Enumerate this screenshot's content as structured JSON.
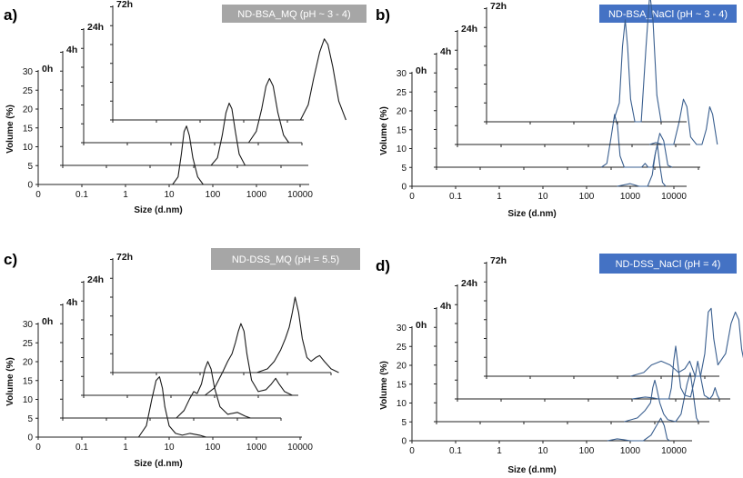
{
  "chart_data": [
    {
      "panel": "a)",
      "type": "line",
      "title": "ND-BSA_MQ (pH ~ 3 - 4)",
      "title_bg": "#a6a6a6",
      "line_color": "#1a1a1a",
      "xlabel": "Size (d.nm)",
      "ylabel": "Volume (%)",
      "x_ticks": [
        "0",
        "0.1",
        "1",
        "10",
        "100",
        "1000",
        "10000"
      ],
      "y_ticks": [
        "0",
        "5",
        "10",
        "15",
        "20",
        "25",
        "30"
      ],
      "ylim": [
        0,
        30
      ],
      "series": [
        {
          "name": "0h",
          "points": [
            [
              12,
              0
            ],
            [
              16,
              2
            ],
            [
              19,
              8
            ],
            [
              22,
              14
            ],
            [
              25,
              15.5
            ],
            [
              29,
              13
            ],
            [
              35,
              7
            ],
            [
              45,
              2
            ],
            [
              60,
              0
            ]
          ]
        },
        {
          "name": "4h",
          "points": [
            [
              25,
              0
            ],
            [
              35,
              2
            ],
            [
              45,
              8
            ],
            [
              55,
              14
            ],
            [
              65,
              16.5
            ],
            [
              75,
              15
            ],
            [
              90,
              9
            ],
            [
              110,
              3
            ],
            [
              150,
              0
            ]
          ]
        },
        {
          "name": "24h",
          "points": [
            [
              60,
              0
            ],
            [
              90,
              3
            ],
            [
              120,
              9
            ],
            [
              150,
              15
            ],
            [
              180,
              17
            ],
            [
              220,
              15
            ],
            [
              280,
              8
            ],
            [
              380,
              2
            ],
            [
              500,
              0
            ]
          ]
        },
        {
          "name": "72h",
          "points": [
            [
              200,
              0
            ],
            [
              300,
              4
            ],
            [
              400,
              11
            ],
            [
              550,
              18
            ],
            [
              700,
              21.5
            ],
            [
              850,
              20
            ],
            [
              1100,
              14
            ],
            [
              1500,
              5
            ],
            [
              2200,
              0
            ]
          ]
        }
      ]
    },
    {
      "panel": "b)",
      "type": "line",
      "title": "ND-BSA_NaCl (pH ~ 3 - 4)",
      "title_bg": "#4472c4",
      "line_color": "#3a5f8f",
      "xlabel": "Size (d.nm)",
      "ylabel": "Volume (%)",
      "x_ticks": [
        "0",
        "0.1",
        "1",
        "10",
        "100",
        "1000",
        "10000"
      ],
      "y_ticks": [
        "0",
        "5",
        "10",
        "15",
        "20",
        "25",
        "30"
      ],
      "ylim": [
        0,
        30
      ],
      "series": [
        {
          "name": "0h",
          "points": [
            [
              500,
              0
            ],
            [
              1000,
              0.7
            ],
            [
              1600,
              0
            ],
            [
              2500,
              0
            ],
            [
              3200,
              3
            ],
            [
              3800,
              9
            ],
            [
              4200,
              11
            ],
            [
              4700,
              6
            ],
            [
              5500,
              1
            ],
            [
              6500,
              0
            ]
          ]
        },
        {
          "name": "4h",
          "points": [
            [
              60,
              0
            ],
            [
              80,
              1
            ],
            [
              100,
              8
            ],
            [
              120,
              14
            ],
            [
              140,
              11
            ],
            [
              160,
              3
            ],
            [
              200,
              0
            ],
            [
              500,
              0
            ],
            [
              600,
              1
            ],
            [
              700,
              0
            ],
            [
              900,
              0
            ],
            [
              1000,
              3
            ],
            [
              1300,
              9
            ],
            [
              1600,
              7
            ],
            [
              2000,
              0.5
            ],
            [
              2500,
              0
            ]
          ]
        },
        {
          "name": "24h",
          "points": [
            [
              250,
              0
            ],
            [
              350,
              0.5
            ],
            [
              500,
              0
            ],
            [
              900,
              0
            ],
            [
              1200,
              6
            ],
            [
              1500,
              12
            ],
            [
              1800,
              10
            ],
            [
              2200,
              2
            ],
            [
              3000,
              0
            ],
            [
              4000,
              0
            ],
            [
              5000,
              4
            ],
            [
              6000,
              10
            ],
            [
              7000,
              8
            ],
            [
              9000,
              0
            ]
          ]
        },
        {
          "name": "72h",
          "points": [
            [
              8,
              0
            ],
            [
              11,
              5
            ],
            [
              13,
              20
            ],
            [
              15,
              27
            ],
            [
              17,
              20
            ],
            [
              20,
              6
            ],
            [
              25,
              0
            ],
            [
              35,
              0
            ],
            [
              45,
              20
            ],
            [
              55,
              34
            ],
            [
              65,
              27
            ],
            [
              80,
              7
            ],
            [
              100,
              0
            ]
          ]
        }
      ]
    },
    {
      "panel": "c)",
      "type": "line",
      "title": "ND-DSS_MQ (pH = 5.5)",
      "title_bg": "#a6a6a6",
      "line_color": "#1a1a1a",
      "xlabel": "Size (d.nm)",
      "ylabel": "Volume (%)",
      "x_ticks": [
        "0",
        "0.1",
        "1",
        "10",
        "100",
        "1000",
        "10000"
      ],
      "y_ticks": [
        "0",
        "5",
        "10",
        "15",
        "20",
        "25",
        "30"
      ],
      "ylim": [
        0,
        30
      ],
      "series": [
        {
          "name": "0h",
          "points": [
            [
              2,
              0
            ],
            [
              3,
              3
            ],
            [
              4,
              10
            ],
            [
              5,
              15
            ],
            [
              6,
              16
            ],
            [
              7,
              13
            ],
            [
              8,
              8
            ],
            [
              10,
              3
            ],
            [
              14,
              1
            ],
            [
              20,
              0.5
            ],
            [
              30,
              1
            ],
            [
              50,
              0.5
            ],
            [
              70,
              0
            ]
          ]
        },
        {
          "name": "4h",
          "points": [
            [
              4,
              0
            ],
            [
              6,
              2
            ],
            [
              8,
              5
            ],
            [
              10,
              7
            ],
            [
              12,
              6.5
            ],
            [
              15,
              9
            ],
            [
              18,
              13
            ],
            [
              21,
              15
            ],
            [
              25,
              13
            ],
            [
              30,
              8
            ],
            [
              40,
              3
            ],
            [
              60,
              1
            ],
            [
              100,
              1.5
            ],
            [
              150,
              0.5
            ],
            [
              200,
              0
            ]
          ]
        },
        {
          "name": "24h",
          "points": [
            [
              6,
              0
            ],
            [
              10,
              2
            ],
            [
              15,
              6
            ],
            [
              20,
              9
            ],
            [
              25,
              11
            ],
            [
              30,
              14
            ],
            [
              35,
              17
            ],
            [
              40,
              19
            ],
            [
              47,
              17
            ],
            [
              55,
              11
            ],
            [
              70,
              4
            ],
            [
              100,
              1
            ],
            [
              150,
              1.5
            ],
            [
              200,
              3
            ],
            [
              250,
              4.5
            ],
            [
              300,
              3
            ],
            [
              400,
              1
            ],
            [
              600,
              0
            ]
          ]
        },
        {
          "name": "72h",
          "points": [
            [
              20,
              0
            ],
            [
              35,
              1
            ],
            [
              50,
              3
            ],
            [
              70,
              6
            ],
            [
              90,
              9
            ],
            [
              110,
              12
            ],
            [
              130,
              16
            ],
            [
              150,
              20
            ],
            [
              180,
              16
            ],
            [
              220,
              9
            ],
            [
              280,
              4
            ],
            [
              350,
              3
            ],
            [
              450,
              4
            ],
            [
              550,
              4.5
            ],
            [
              700,
              3
            ],
            [
              1000,
              1
            ],
            [
              1500,
              0
            ]
          ]
        }
      ]
    },
    {
      "panel": "d)",
      "type": "line",
      "title": "ND-DSS_NaCl (pH = 4)",
      "title_bg": "#4472c4",
      "line_color": "#3a5f8f",
      "xlabel": "Size (d.nm)",
      "ylabel": "Volume (%)",
      "x_ticks": [
        "0",
        "0.1",
        "1",
        "10",
        "100",
        "1000",
        "10000"
      ],
      "y_ticks": [
        "0",
        "5",
        "10",
        "15",
        "20",
        "25",
        "30"
      ],
      "ylim": [
        0,
        30
      ],
      "series": [
        {
          "name": "0h",
          "points": [
            [
              300,
              0
            ],
            [
              500,
              0.5
            ],
            [
              700,
              0.3
            ],
            [
              1000,
              0
            ],
            [
              2000,
              0
            ],
            [
              3000,
              1.5
            ],
            [
              4000,
              4
            ],
            [
              5000,
              6
            ],
            [
              6000,
              4
            ],
            [
              7000,
              0.5
            ],
            [
              8000,
              0
            ]
          ]
        },
        {
          "name": "4h",
          "points": [
            [
              200,
              0
            ],
            [
              400,
              1
            ],
            [
              600,
              3
            ],
            [
              800,
              5
            ],
            [
              900,
              9
            ],
            [
              1000,
              11
            ],
            [
              1100,
              9
            ],
            [
              1300,
              5
            ],
            [
              1600,
              2
            ],
            [
              2000,
              0.5
            ],
            [
              3000,
              0
            ],
            [
              4000,
              2
            ],
            [
              5500,
              10
            ],
            [
              6500,
              13
            ],
            [
              7500,
              8
            ],
            [
              9000,
              1
            ],
            [
              10000,
              0
            ]
          ]
        },
        {
          "name": "24h",
          "points": [
            [
              100,
              0
            ],
            [
              200,
              0.5
            ],
            [
              300,
              0.3
            ],
            [
              400,
              0
            ],
            [
              700,
              0
            ],
            [
              800,
              3
            ],
            [
              900,
              10
            ],
            [
              1000,
              14
            ],
            [
              1100,
              10
            ],
            [
              1300,
              3
            ],
            [
              1600,
              1
            ],
            [
              2200,
              0.5
            ],
            [
              2800,
              6
            ],
            [
              3200,
              10
            ],
            [
              3700,
              6
            ],
            [
              4500,
              1
            ],
            [
              6000,
              0
            ],
            [
              7000,
              1
            ],
            [
              8000,
              3
            ],
            [
              9000,
              1
            ],
            [
              10000,
              0
            ]
          ]
        },
        {
          "name": "72h",
          "points": [
            [
              20,
              0
            ],
            [
              40,
              1
            ],
            [
              60,
              3
            ],
            [
              100,
              4
            ],
            [
              160,
              3
            ],
            [
              250,
              1
            ],
            [
              350,
              2
            ],
            [
              450,
              4
            ],
            [
              500,
              2.5
            ],
            [
              600,
              0
            ],
            [
              800,
              0
            ],
            [
              1000,
              6
            ],
            [
              1200,
              17
            ],
            [
              1400,
              18
            ],
            [
              1600,
              10
            ],
            [
              2000,
              3
            ],
            [
              3000,
              6
            ],
            [
              4000,
              14
            ],
            [
              5000,
              17
            ],
            [
              6000,
              15
            ],
            [
              7000,
              7
            ],
            [
              9000,
              1
            ],
            [
              12000,
              0
            ],
            [
              15000,
              0
            ],
            [
              18000,
              1.5
            ],
            [
              20000,
              2.5
            ],
            [
              22000,
              1
            ],
            [
              25000,
              0
            ]
          ]
        }
      ]
    }
  ]
}
